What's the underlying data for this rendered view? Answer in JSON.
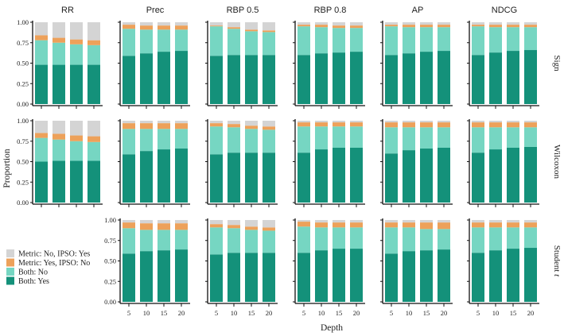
{
  "chart_data": {
    "type": "bar",
    "stacked": true,
    "xlabel": "Depth",
    "ylabel": "Proportion",
    "ylim": [
      0,
      1
    ],
    "yticks": [
      "0.00",
      "0.25",
      "0.50",
      "0.75",
      "1.00"
    ],
    "categories": [
      "5",
      "10",
      "15",
      "20"
    ],
    "metrics": [
      "RR",
      "Prec",
      "RBP 0.5",
      "RBP 0.8",
      "AP",
      "NDCG"
    ],
    "tests": [
      "Sign",
      "Wilcoxon",
      "Student t"
    ],
    "series_names": [
      "Metric: No, IPSO: Yes",
      "Metric: Yes, IPSO: No",
      "Both: No",
      "Both: Yes"
    ],
    "colors": {
      "Metric: No, IPSO: Yes": "#d4d4d4",
      "Metric: Yes, IPSO: No": "#eda15a",
      "Both: No": "#76d6c2",
      "Both: Yes": "#14917a"
    },
    "legend_position": "bottom-left",
    "panels": [
      {
        "test": "Sign",
        "metric": "RR",
        "both_yes": [
          0.48,
          0.48,
          0.48,
          0.48
        ],
        "both_no": [
          0.3,
          0.27,
          0.25,
          0.24
        ],
        "metric_yes_ipso_no": [
          0.06,
          0.06,
          0.06,
          0.06
        ],
        "metric_no_ipso_yes": [
          0.16,
          0.19,
          0.21,
          0.22
        ]
      },
      {
        "test": "Sign",
        "metric": "Prec",
        "both_yes": [
          0.59,
          0.62,
          0.64,
          0.65
        ],
        "both_no": [
          0.33,
          0.29,
          0.27,
          0.26
        ],
        "metric_yes_ipso_no": [
          0.05,
          0.05,
          0.05,
          0.05
        ],
        "metric_no_ipso_yes": [
          0.03,
          0.04,
          0.04,
          0.04
        ]
      },
      {
        "test": "Sign",
        "metric": "RBP 0.5",
        "both_yes": [
          0.59,
          0.6,
          0.6,
          0.6
        ],
        "both_no": [
          0.36,
          0.32,
          0.29,
          0.28
        ],
        "metric_yes_ipso_no": [
          0.01,
          0.02,
          0.02,
          0.02
        ],
        "metric_no_ipso_yes": [
          0.04,
          0.06,
          0.09,
          0.1
        ]
      },
      {
        "test": "Sign",
        "metric": "RBP 0.8",
        "both_yes": [
          0.6,
          0.62,
          0.63,
          0.64
        ],
        "both_no": [
          0.35,
          0.32,
          0.3,
          0.29
        ],
        "metric_yes_ipso_no": [
          0.02,
          0.03,
          0.03,
          0.03
        ],
        "metric_no_ipso_yes": [
          0.03,
          0.03,
          0.04,
          0.04
        ]
      },
      {
        "test": "Sign",
        "metric": "AP",
        "both_yes": [
          0.6,
          0.62,
          0.64,
          0.65
        ],
        "both_no": [
          0.35,
          0.32,
          0.3,
          0.29
        ],
        "metric_yes_ipso_no": [
          0.02,
          0.03,
          0.03,
          0.03
        ],
        "metric_no_ipso_yes": [
          0.03,
          0.03,
          0.03,
          0.03
        ]
      },
      {
        "test": "Sign",
        "metric": "NDCG",
        "both_yes": [
          0.6,
          0.63,
          0.65,
          0.66
        ],
        "both_no": [
          0.35,
          0.31,
          0.29,
          0.28
        ],
        "metric_yes_ipso_no": [
          0.02,
          0.03,
          0.03,
          0.03
        ],
        "metric_no_ipso_yes": [
          0.03,
          0.03,
          0.03,
          0.03
        ]
      },
      {
        "test": "Wilcoxon",
        "metric": "RR",
        "both_yes": [
          0.5,
          0.51,
          0.51,
          0.51
        ],
        "both_no": [
          0.29,
          0.26,
          0.24,
          0.23
        ],
        "metric_yes_ipso_no": [
          0.06,
          0.07,
          0.07,
          0.07
        ],
        "metric_no_ipso_yes": [
          0.15,
          0.16,
          0.18,
          0.19
        ]
      },
      {
        "test": "Wilcoxon",
        "metric": "Prec",
        "both_yes": [
          0.59,
          0.63,
          0.65,
          0.66
        ],
        "both_no": [
          0.31,
          0.27,
          0.25,
          0.24
        ],
        "metric_yes_ipso_no": [
          0.07,
          0.07,
          0.07,
          0.07
        ],
        "metric_no_ipso_yes": [
          0.03,
          0.03,
          0.03,
          0.03
        ]
      },
      {
        "test": "Wilcoxon",
        "metric": "RBP 0.5",
        "both_yes": [
          0.59,
          0.61,
          0.61,
          0.61
        ],
        "both_no": [
          0.34,
          0.31,
          0.29,
          0.28
        ],
        "metric_yes_ipso_no": [
          0.04,
          0.04,
          0.04,
          0.04
        ],
        "metric_no_ipso_yes": [
          0.03,
          0.04,
          0.06,
          0.07
        ]
      },
      {
        "test": "Wilcoxon",
        "metric": "RBP 0.8",
        "both_yes": [
          0.61,
          0.65,
          0.67,
          0.67
        ],
        "both_no": [
          0.32,
          0.28,
          0.26,
          0.26
        ],
        "metric_yes_ipso_no": [
          0.05,
          0.05,
          0.05,
          0.05
        ],
        "metric_no_ipso_yes": [
          0.02,
          0.02,
          0.02,
          0.02
        ]
      },
      {
        "test": "Wilcoxon",
        "metric": "AP",
        "both_yes": [
          0.6,
          0.64,
          0.66,
          0.67
        ],
        "both_no": [
          0.32,
          0.28,
          0.26,
          0.25
        ],
        "metric_yes_ipso_no": [
          0.06,
          0.06,
          0.06,
          0.06
        ],
        "metric_no_ipso_yes": [
          0.02,
          0.02,
          0.02,
          0.02
        ]
      },
      {
        "test": "Wilcoxon",
        "metric": "NDCG",
        "both_yes": [
          0.61,
          0.65,
          0.67,
          0.68
        ],
        "both_no": [
          0.31,
          0.27,
          0.25,
          0.24
        ],
        "metric_yes_ipso_no": [
          0.06,
          0.06,
          0.06,
          0.06
        ],
        "metric_no_ipso_yes": [
          0.02,
          0.02,
          0.02,
          0.02
        ]
      },
      {
        "test": "Student t",
        "metric": "Prec",
        "both_yes": [
          0.59,
          0.62,
          0.63,
          0.64
        ],
        "both_no": [
          0.31,
          0.26,
          0.25,
          0.24
        ],
        "metric_yes_ipso_no": [
          0.07,
          0.08,
          0.08,
          0.08
        ],
        "metric_no_ipso_yes": [
          0.03,
          0.04,
          0.04,
          0.04
        ]
      },
      {
        "test": "Student t",
        "metric": "RBP 0.5",
        "both_yes": [
          0.58,
          0.6,
          0.6,
          0.6
        ],
        "both_no": [
          0.33,
          0.3,
          0.28,
          0.27
        ],
        "metric_yes_ipso_no": [
          0.04,
          0.04,
          0.04,
          0.04
        ],
        "metric_no_ipso_yes": [
          0.05,
          0.06,
          0.08,
          0.09
        ]
      },
      {
        "test": "Student t",
        "metric": "RBP 0.8",
        "both_yes": [
          0.6,
          0.63,
          0.65,
          0.65
        ],
        "both_no": [
          0.32,
          0.28,
          0.26,
          0.26
        ],
        "metric_yes_ipso_no": [
          0.06,
          0.06,
          0.06,
          0.06
        ],
        "metric_no_ipso_yes": [
          0.02,
          0.03,
          0.03,
          0.03
        ]
      },
      {
        "test": "Student t",
        "metric": "AP",
        "both_yes": [
          0.59,
          0.62,
          0.63,
          0.64
        ],
        "both_no": [
          0.32,
          0.29,
          0.26,
          0.25
        ],
        "metric_yes_ipso_no": [
          0.06,
          0.06,
          0.08,
          0.08
        ],
        "metric_no_ipso_yes": [
          0.03,
          0.03,
          0.03,
          0.03
        ]
      },
      {
        "test": "Student t",
        "metric": "NDCG",
        "both_yes": [
          0.6,
          0.63,
          0.65,
          0.66
        ],
        "both_no": [
          0.31,
          0.28,
          0.26,
          0.25
        ],
        "metric_yes_ipso_no": [
          0.06,
          0.06,
          0.06,
          0.06
        ],
        "metric_no_ipso_yes": [
          0.03,
          0.03,
          0.03,
          0.03
        ]
      }
    ]
  }
}
